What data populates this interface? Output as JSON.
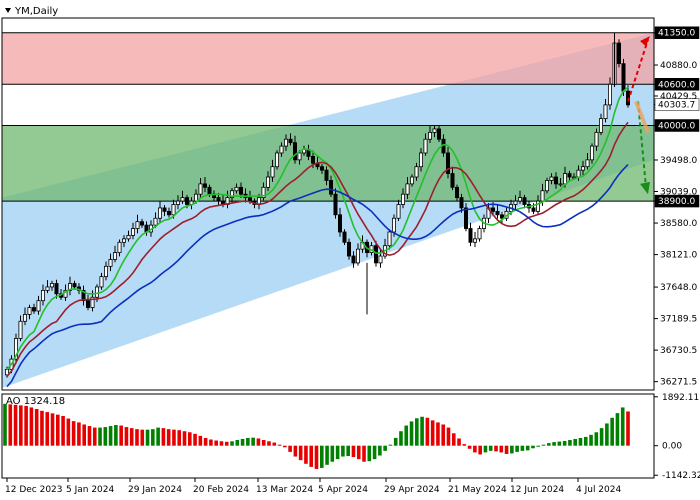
{
  "chart_title": "YM,Daily",
  "chart_data": [
    {
      "type": "candlestick",
      "symbol": "YM",
      "timeframe": "Daily",
      "ylim": [
        36150,
        41550
      ],
      "y_tick_labels": [
        "41350.0",
        "40880.0",
        "40600.0",
        "40429.5",
        "40303.7",
        "40000.0",
        "39498.0",
        "39039.0",
        "38900.0",
        "38580.0",
        "38121.0",
        "37648.0",
        "37189.5",
        "36730.5",
        "36271.5"
      ],
      "x_tick_labels": [
        "12 Dec 2023",
        "5 Jan 2024",
        "29 Jan 2024",
        "20 Feb 2024",
        "13 Mar 2024",
        "5 Apr 2024",
        "29 Apr 2024",
        "21 May 2024",
        "12 Jun 2024",
        "4 Jul 2024"
      ],
      "zones": [
        {
          "name": "resistance",
          "from": 40600,
          "to": 41350,
          "color": "#f4a3a3"
        },
        {
          "name": "support",
          "from": 38900,
          "to": 40000,
          "color": "#6fb86f"
        }
      ],
      "level_labels": [
        {
          "value": 41350.0,
          "label": "41350.0",
          "bg": "#000000",
          "fg": "#ffffff"
        },
        {
          "value": 40600.0,
          "label": "40600.0",
          "bg": "#000000",
          "fg": "#ffffff"
        },
        {
          "value": 40303.7,
          "label": "40303.7",
          "bg": "#ffffff",
          "fg": "#000000"
        },
        {
          "value": 40000.0,
          "label": "40000.0",
          "bg": "#000000",
          "fg": "#ffffff"
        },
        {
          "value": 38900.0,
          "label": "38900.0",
          "bg": "#000000",
          "fg": "#ffffff"
        }
      ],
      "channel_color": "#a9d5f5",
      "closes": [
        36450,
        36600,
        36900,
        37150,
        37250,
        37350,
        37300,
        37450,
        37600,
        37650,
        37700,
        37550,
        37500,
        37600,
        37700,
        37650,
        37600,
        37450,
        37350,
        37500,
        37650,
        37800,
        37950,
        38050,
        38150,
        38300,
        38350,
        38400,
        38500,
        38600,
        38550,
        38450,
        38550,
        38650,
        38800,
        38750,
        38700,
        38850,
        38900,
        38950,
        38850,
        38900,
        39000,
        39150,
        39100,
        39000,
        38950,
        38900,
        38850,
        38950,
        39050,
        39100,
        39000,
        38950,
        38900,
        38850,
        38950,
        39100,
        39250,
        39400,
        39600,
        39700,
        39800,
        39750,
        39500,
        39600,
        39650,
        39550,
        39450,
        39400,
        39350,
        39200,
        39000,
        38700,
        38450,
        38300,
        38100,
        38000,
        38200,
        38300,
        38150,
        38250,
        38000,
        38100,
        38250,
        38450,
        38650,
        38850,
        39000,
        39150,
        39250,
        39400,
        39600,
        39800,
        39900,
        39950,
        39800,
        39600,
        39300,
        39100,
        38950,
        38800,
        38500,
        38300,
        38350,
        38500,
        38650,
        38800,
        38750,
        38700,
        38650,
        38750,
        38850,
        38900,
        38950,
        38850,
        38800,
        38750,
        38900,
        39050,
        39200,
        39250,
        39150,
        39150,
        39300,
        39250,
        39250,
        39350,
        39400,
        39500,
        39700,
        39900,
        40100,
        40300,
        40600,
        41200,
        40900,
        40500,
        40300
      ],
      "ao_series": {
        "label": "AO",
        "value_label": "1324.18",
        "ylim": [
          -1250,
          2000
        ],
        "y_tick_labels": [
          "1892.11",
          "0.00",
          "-1142.32"
        ],
        "values": [
          1620,
          1600,
          1580,
          1560,
          1540,
          1480,
          1420,
          1350,
          1300,
          1250,
          1200,
          1150,
          1050,
          950,
          900,
          820,
          760,
          700,
          700,
          720,
          760,
          800,
          780,
          720,
          680,
          640,
          620,
          620,
          640,
          700,
          680,
          640,
          620,
          600,
          560,
          520,
          460,
          380,
          300,
          240,
          200,
          170,
          150,
          170,
          220,
          260,
          300,
          310,
          280,
          220,
          170,
          120,
          40,
          -60,
          -240,
          -420,
          -560,
          -700,
          -820,
          -900,
          -860,
          -740,
          -620,
          -520,
          -420,
          -400,
          -440,
          -520,
          -620,
          -600,
          -520,
          -380,
          -200,
          40,
          300,
          560,
          780,
          940,
          1060,
          1120,
          1080,
          980,
          900,
          820,
          700,
          480,
          280,
          60,
          -120,
          -260,
          -340,
          -260,
          -200,
          -220,
          -260,
          -320,
          -300,
          -240,
          -200,
          -180,
          -100,
          -40,
          40,
          100,
          140,
          160,
          180,
          220,
          260,
          300,
          340,
          420,
          520,
          680,
          860,
          1080,
          1260,
          1480,
          1324
        ],
        "colors_up": "#008000",
        "colors_down": "#e60000"
      }
    }
  ]
}
